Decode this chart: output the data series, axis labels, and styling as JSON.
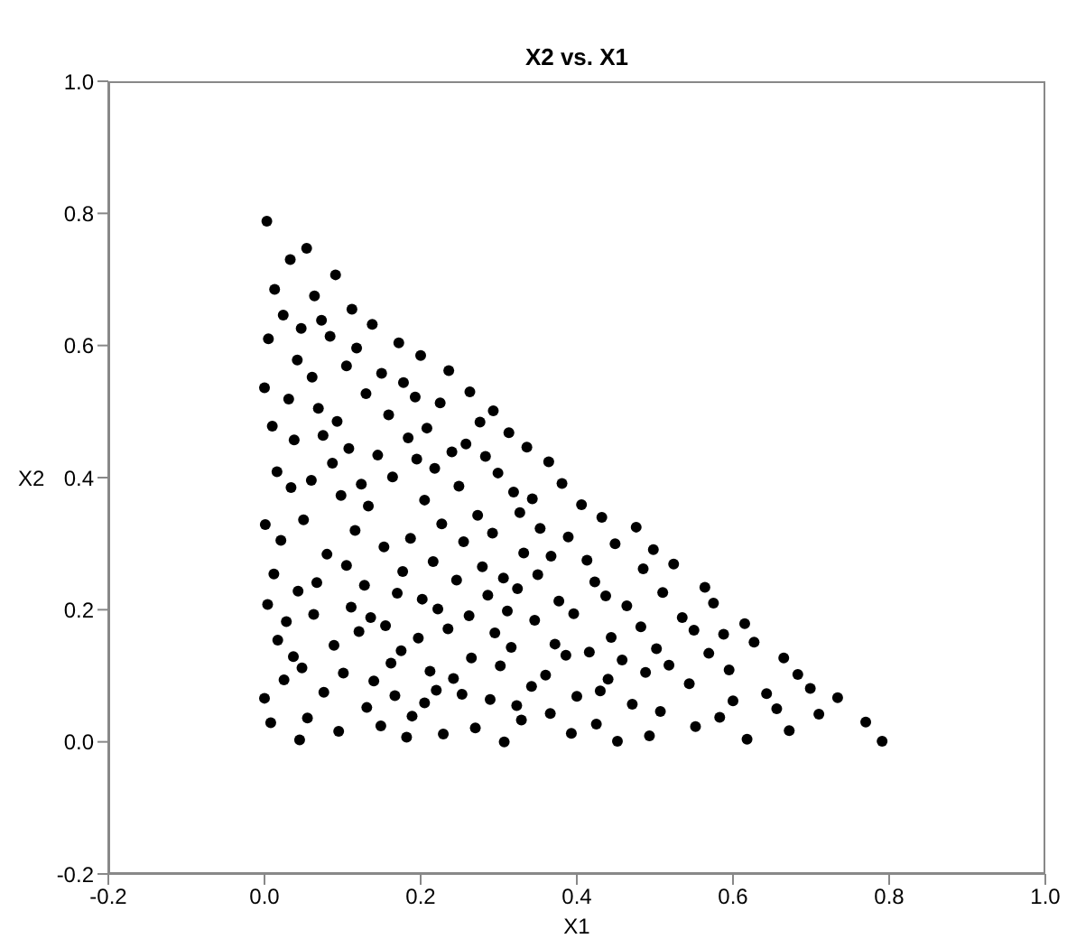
{
  "chart_data": {
    "type": "scatter",
    "title": "X2 vs. X1",
    "xlabel": "X1",
    "ylabel": "X2",
    "xlim": [
      -0.2,
      1
    ],
    "ylim": [
      -0.2,
      1
    ],
    "xticks": [
      -0.2,
      {
        "value": 0,
        "label": "0.0"
      },
      0.2,
      0.4,
      0.6,
      0.8,
      {
        "value": 1,
        "label": "1.0"
      }
    ],
    "yticks": [
      -0.2,
      {
        "value": 0,
        "label": "0.0"
      },
      0.2,
      0.4,
      0.6,
      0.8,
      {
        "value": 1,
        "label": "1.0"
      }
    ],
    "grid": false,
    "legend": false,
    "marker": "circle",
    "series": [
      {
        "color": "#000000",
        "x": [
          0.003,
          0.054,
          0.033,
          0.091,
          0.013,
          0.064,
          0.112,
          0.024,
          0.073,
          0.047,
          0.138,
          0.084,
          0.005,
          0.172,
          0.118,
          0.2,
          0.042,
          0.105,
          0.236,
          0.15,
          0.061,
          0.178,
          0.0,
          0.263,
          0.13,
          0.031,
          0.193,
          0.225,
          0.069,
          0.293,
          0.159,
          0.093,
          0.276,
          0.01,
          0.208,
          0.313,
          0.075,
          0.038,
          0.184,
          0.336,
          0.258,
          0.108,
          0.24,
          0.145,
          0.283,
          0.195,
          0.087,
          0.218,
          0.016,
          0.299,
          0.164,
          0.06,
          0.124,
          0.249,
          0.034,
          0.098,
          0.319,
          0.133,
          0.205,
          0.273,
          0.05,
          0.001,
          0.227,
          0.116,
          0.292,
          0.021,
          0.187,
          0.255,
          0.153,
          0.08,
          0.216,
          0.105,
          0.279,
          0.177,
          0.012,
          0.306,
          0.246,
          0.067,
          0.128,
          0.043,
          0.286,
          0.17,
          0.202,
          0.004,
          0.111,
          0.222,
          0.311,
          0.063,
          0.262,
          0.136,
          0.028,
          0.155,
          0.235,
          0.121,
          0.295,
          0.017,
          0.197,
          0.089,
          0.316,
          0.175,
          0.037,
          0.265,
          0.162,
          0.048,
          0.302,
          0.212,
          0.101,
          0.242,
          0.025,
          0.14,
          0.22,
          0.076,
          0.253,
          0.0,
          0.167,
          0.289,
          0.205,
          0.131,
          0.055,
          0.189,
          0.008,
          0.149,
          0.27,
          0.095,
          0.229,
          0.182,
          0.045,
          0.307,
          0.364,
          0.381,
          0.343,
          0.327,
          0.406,
          0.432,
          0.476,
          0.353,
          0.389,
          0.449,
          0.498,
          0.524,
          0.332,
          0.367,
          0.413,
          0.485,
          0.35,
          0.423,
          0.324,
          0.437,
          0.51,
          0.564,
          0.377,
          0.464,
          0.575,
          0.396,
          0.346,
          0.535,
          0.482,
          0.615,
          0.55,
          0.588,
          0.444,
          0.627,
          0.372,
          0.416,
          0.386,
          0.502,
          0.569,
          0.458,
          0.665,
          0.518,
          0.488,
          0.595,
          0.683,
          0.36,
          0.44,
          0.544,
          0.342,
          0.43,
          0.4,
          0.643,
          0.6,
          0.471,
          0.323,
          0.656,
          0.507,
          0.366,
          0.583,
          0.329,
          0.425,
          0.552,
          0.672,
          0.393,
          0.493,
          0.452,
          0.618,
          0.699,
          0.734,
          0.71,
          0.77,
          0.791
        ],
        "values": [
          0.788,
          0.747,
          0.73,
          0.707,
          0.685,
          0.675,
          0.655,
          0.646,
          0.638,
          0.626,
          0.632,
          0.614,
          0.61,
          0.604,
          0.596,
          0.585,
          0.578,
          0.569,
          0.562,
          0.558,
          0.552,
          0.544,
          0.536,
          0.53,
          0.527,
          0.519,
          0.522,
          0.513,
          0.505,
          0.501,
          0.495,
          0.485,
          0.484,
          0.478,
          0.475,
          0.468,
          0.464,
          0.457,
          0.46,
          0.446,
          0.451,
          0.444,
          0.439,
          0.434,
          0.432,
          0.428,
          0.422,
          0.414,
          0.409,
          0.407,
          0.401,
          0.396,
          0.39,
          0.387,
          0.385,
          0.373,
          0.378,
          0.357,
          0.366,
          0.343,
          0.336,
          0.329,
          0.33,
          0.32,
          0.316,
          0.305,
          0.308,
          0.303,
          0.295,
          0.284,
          0.273,
          0.267,
          0.265,
          0.258,
          0.254,
          0.248,
          0.245,
          0.241,
          0.237,
          0.228,
          0.222,
          0.225,
          0.216,
          0.208,
          0.204,
          0.201,
          0.198,
          0.193,
          0.191,
          0.188,
          0.182,
          0.176,
          0.171,
          0.167,
          0.165,
          0.154,
          0.157,
          0.146,
          0.143,
          0.138,
          0.129,
          0.127,
          0.119,
          0.112,
          0.115,
          0.107,
          0.104,
          0.096,
          0.094,
          0.092,
          0.078,
          0.075,
          0.072,
          0.066,
          0.07,
          0.064,
          0.059,
          0.052,
          0.036,
          0.039,
          0.029,
          0.024,
          0.021,
          0.016,
          0.012,
          0.007,
          0.003,
          0.0,
          0.424,
          0.391,
          0.368,
          0.347,
          0.359,
          0.34,
          0.325,
          0.323,
          0.31,
          0.3,
          0.291,
          0.269,
          0.286,
          0.281,
          0.275,
          0.262,
          0.253,
          0.242,
          0.232,
          0.221,
          0.226,
          0.234,
          0.213,
          0.206,
          0.21,
          0.194,
          0.184,
          0.188,
          0.174,
          0.179,
          0.169,
          0.163,
          0.158,
          0.151,
          0.148,
          0.136,
          0.131,
          0.141,
          0.134,
          0.124,
          0.127,
          0.116,
          0.105,
          0.109,
          0.102,
          0.101,
          0.095,
          0.088,
          0.084,
          0.077,
          0.069,
          0.073,
          0.062,
          0.057,
          0.055,
          0.05,
          0.046,
          0.043,
          0.037,
          0.033,
          0.027,
          0.023,
          0.017,
          0.013,
          0.009,
          0.001,
          0.004,
          0.081,
          0.067,
          0.042,
          0.03,
          0.001
        ]
      }
    ]
  }
}
